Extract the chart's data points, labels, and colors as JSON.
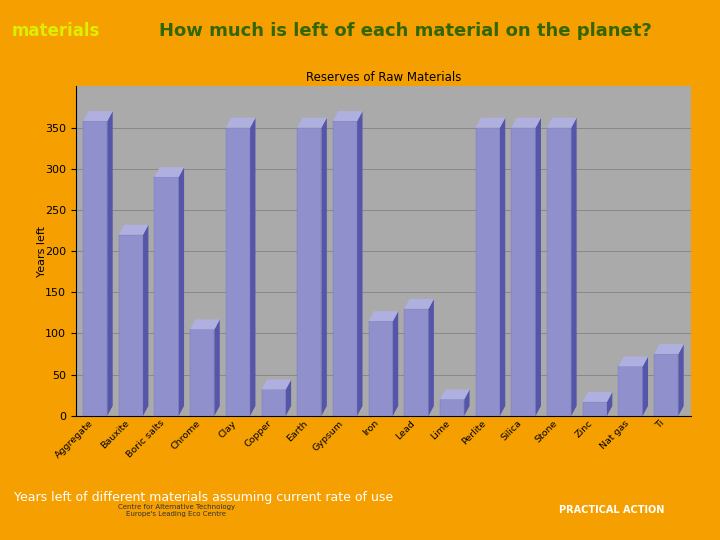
{
  "title": "Reserves of Raw Materials",
  "ylabel": "Years left",
  "background_outer": "#f5a000",
  "bar_face_color": "#9090cc",
  "bar_side_color": "#5555aa",
  "bar_top_color": "#b0b0e0",
  "header_bg": "#88bb44",
  "header_text": "materials",
  "header_text_color": "#ddee00",
  "main_title": "How much is left of each material on the planet?",
  "main_title_color": "#336600",
  "subtitle_text": "Years left of different materials assuming current rate of use",
  "categories": [
    "Aggregate",
    "Bauxite",
    "Boric salts",
    "Chrome",
    "Clay",
    "Copper",
    "Earth",
    "Gypsum",
    "Iron",
    "Lead",
    "Lime",
    "Perlite",
    "Silica",
    "Stone",
    "Zinc",
    "Nat gas",
    "Ti"
  ],
  "values": [
    370,
    220,
    290,
    105,
    350,
    32,
    350,
    370,
    115,
    130,
    20,
    350,
    350,
    350,
    17,
    60,
    75
  ],
  "yticks": [
    0,
    50,
    100,
    150,
    200,
    250,
    300,
    350
  ],
  "arrow_color": "#006600",
  "chart_bg": "#aaaaaa",
  "grid_color": "#888888"
}
